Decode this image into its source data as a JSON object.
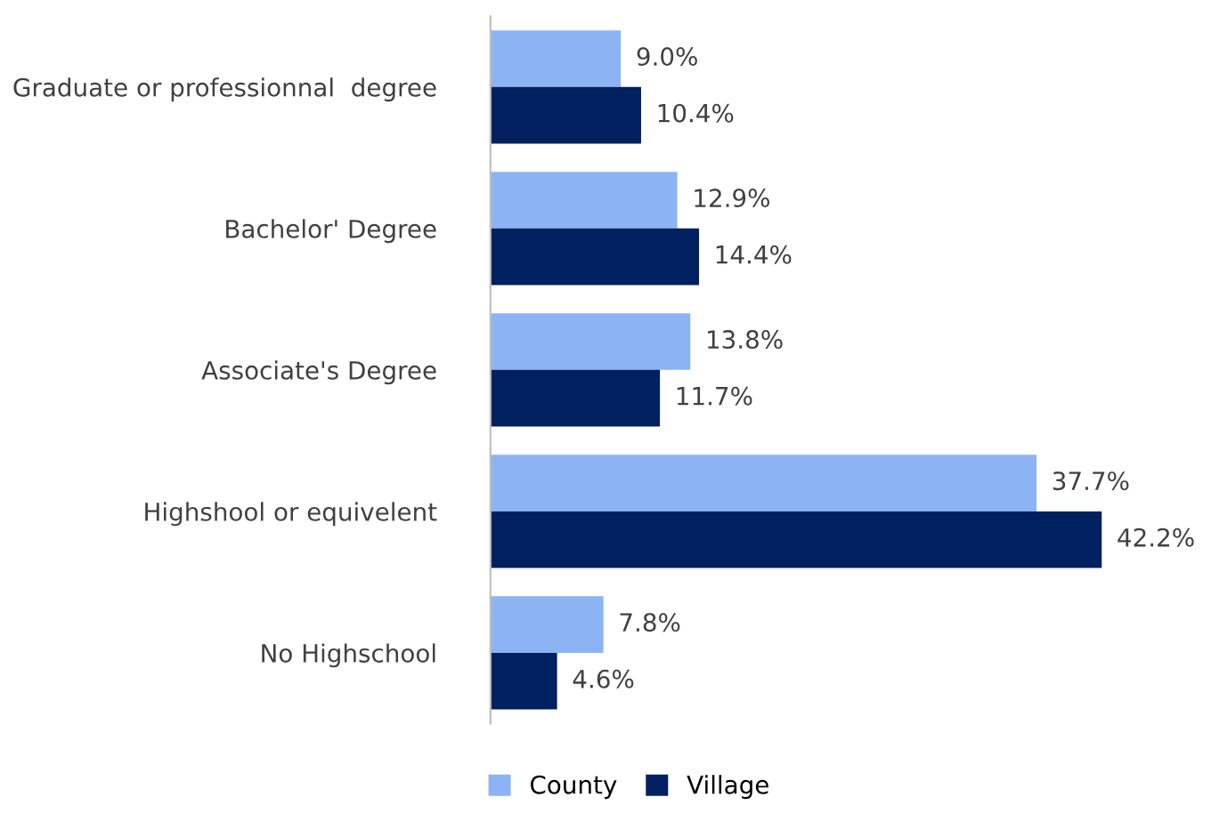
{
  "chart_data": {
    "type": "bar",
    "orientation": "horizontal",
    "categories": [
      "Graduate or professionnal  degree",
      "Bachelor' Degree",
      "Associate's Degree",
      "Highshool or equivelent",
      "No Highschool"
    ],
    "series": [
      {
        "name": "County",
        "color": "#8cb4f4",
        "values": [
          9.0,
          12.9,
          13.8,
          37.7,
          7.8
        ],
        "value_labels": [
          "9.0%",
          "12.9%",
          "13.8%",
          "37.7%",
          "7.8%"
        ]
      },
      {
        "name": "Village",
        "color": "#002060",
        "values": [
          10.4,
          14.4,
          11.7,
          42.2,
          4.6
        ],
        "value_labels": [
          "10.4%",
          "14.4%",
          "11.7%",
          "42.2%",
          "4.6%"
        ]
      }
    ],
    "legend": "bottom",
    "grid": false,
    "tick_labels": "y"
  }
}
